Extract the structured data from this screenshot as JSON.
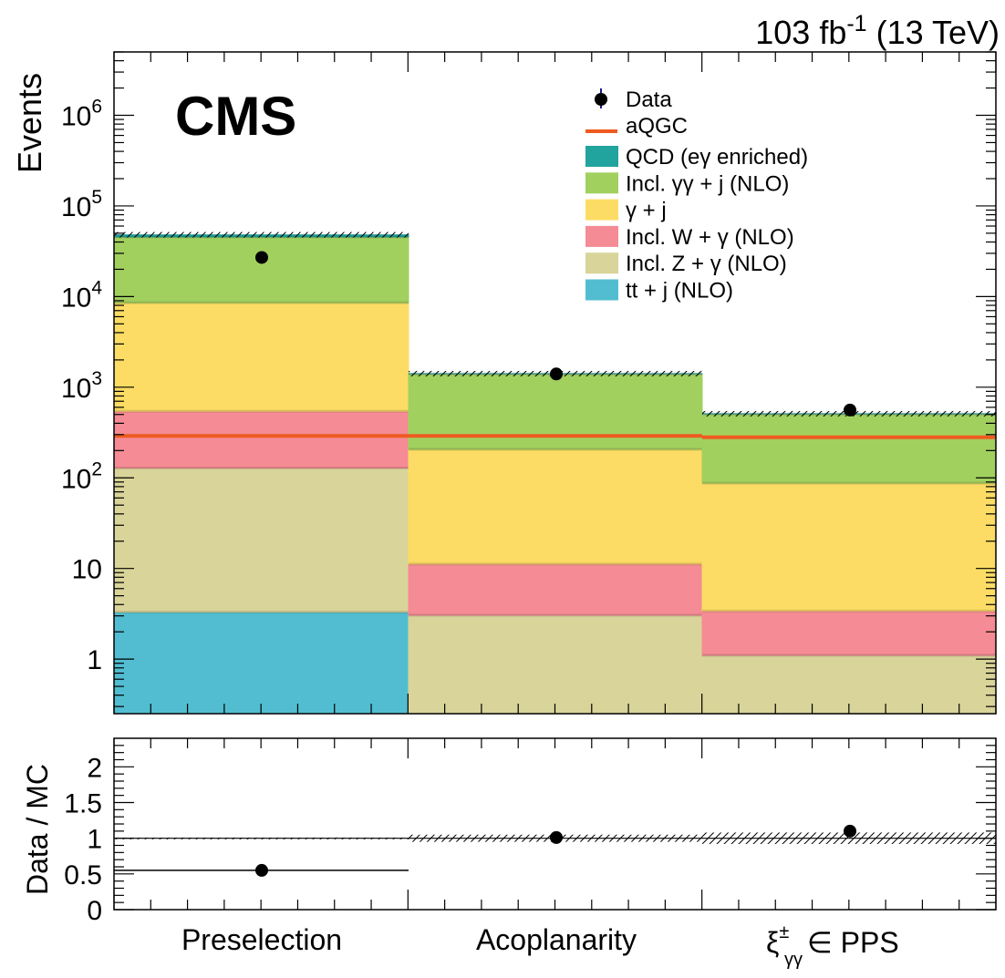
{
  "header": {
    "lumi_label": "103 fb",
    "lumi_exp": "-1",
    "energy_label": " (13 TeV)",
    "experiment": "CMS"
  },
  "chart_data": [
    {
      "type": "bar",
      "stacked": true,
      "yscale": "log",
      "ylim": [
        0.25,
        5000000
      ],
      "ylabel": "Events",
      "categories": [
        "Preselection",
        "Acoplanarity",
        "PPS"
      ],
      "yticks": [
        {
          "value": 1,
          "label": "1"
        },
        {
          "value": 10,
          "label": "10"
        },
        {
          "value": 100,
          "label": "10",
          "exp": "2"
        },
        {
          "value": 1000,
          "label": "10",
          "exp": "3"
        },
        {
          "value": 10000,
          "label": "10",
          "exp": "4"
        },
        {
          "value": 100000,
          "label": "10",
          "exp": "5"
        },
        {
          "value": 1000000,
          "label": "10",
          "exp": "6"
        }
      ],
      "series": [
        {
          "name": "tt + j (NLO)",
          "color": "#52bdd1",
          "values": [
            3.3,
            0,
            0
          ]
        },
        {
          "name": "Incl. Z + γ (NLO)",
          "color": "#d9d499",
          "values": [
            125,
            3.05,
            1.1
          ]
        },
        {
          "name": "Incl. W + γ (NLO)",
          "color": "#f58b94",
          "values": [
            415,
            8.15,
            2.3
          ]
        },
        {
          "name": "γ + j",
          "color": "#fcdc65",
          "values": [
            8000,
            195,
            84
          ]
        },
        {
          "name": "Incl. γγ + j (NLO)",
          "color": "#a2d05f",
          "values": [
            37000,
            1200,
            420
          ]
        },
        {
          "name": "QCD (eγ enriched)",
          "color": "#21a39e",
          "values": [
            2500,
            5,
            2
          ]
        }
      ],
      "data": {
        "name": "Data",
        "values": [
          27000,
          1400,
          560
        ]
      },
      "aqgc": {
        "name": "aQGC",
        "color": "#ee5b20",
        "values": [
          290,
          290,
          280
        ]
      },
      "legend": {
        "position": "top-right"
      }
    },
    {
      "type": "scatter",
      "ylabel": "Data / MC",
      "ylim": [
        0,
        2.4
      ],
      "yticks": [
        {
          "value": 0,
          "label": "0"
        },
        {
          "value": 0.5,
          "label": "0.5"
        },
        {
          "value": 1,
          "label": "1"
        },
        {
          "value": 1.5,
          "label": "1.5"
        },
        {
          "value": 2,
          "label": "2"
        }
      ],
      "categories": [
        "Preselection",
        "Acoplanarity",
        "PPS"
      ],
      "values": [
        0.55,
        1.01,
        1.1
      ],
      "unc_band": [
        0.01,
        0.05,
        0.08
      ],
      "x_labels": {
        "cat1": "Preselection",
        "cat2": "Acoplanarity",
        "cat3_sym": "ξ",
        "cat3_sup": "±",
        "cat3_sub": "γγ",
        "cat3_rest": " ∈ PPS"
      }
    }
  ]
}
